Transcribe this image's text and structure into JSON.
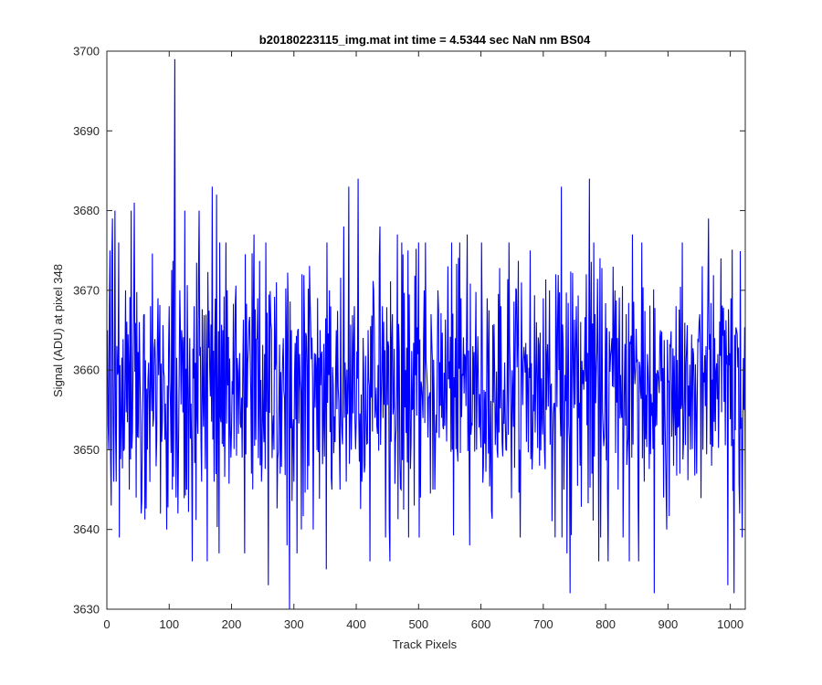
{
  "chart_data": {
    "type": "line",
    "title": "b20180223115_img.mat int time = 4.5344 sec  NaN nm BS04",
    "xlabel": "Track Pixels",
    "ylabel": "Signal (ADU) at pixel 348",
    "xlim": [
      0,
      1024
    ],
    "ylim": [
      3630,
      3700
    ],
    "xticks": [
      0,
      100,
      200,
      300,
      400,
      500,
      600,
      700,
      800,
      900,
      1000
    ],
    "yticks": [
      3630,
      3640,
      3650,
      3660,
      3670,
      3680,
      3690,
      3700
    ],
    "grid": false,
    "legend": "none",
    "series_color": "#0000ff",
    "series": [
      {
        "x_start": 1,
        "x_step": 1,
        "noise_model": {
          "mean": 3658,
          "sd": 8.5
        },
        "points": [
          [
            1,
            3665
          ],
          [
            3,
            3650
          ],
          [
            5,
            3675
          ],
          [
            7,
            3643
          ],
          [
            9,
            3679
          ],
          [
            11,
            3646
          ],
          [
            13,
            3680
          ],
          [
            15,
            3646
          ],
          [
            19,
            3676
          ],
          [
            23,
            3654
          ],
          [
            30,
            3670
          ],
          [
            36,
            3645
          ],
          [
            39,
            3680
          ],
          [
            42,
            3660
          ],
          [
            44,
            3681
          ],
          [
            47,
            3644
          ],
          [
            52,
            3666
          ],
          [
            55,
            3642
          ],
          [
            60,
            3667
          ],
          [
            65,
            3650
          ],
          [
            70,
            3668
          ],
          [
            75,
            3654
          ],
          [
            82,
            3669
          ],
          [
            88,
            3651
          ],
          [
            96,
            3640
          ],
          [
            100,
            3668
          ],
          [
            105,
            3645
          ],
          [
            109,
            3699
          ],
          [
            111,
            3644
          ],
          [
            114,
            3642
          ],
          [
            120,
            3665
          ],
          [
            125,
            3680
          ],
          [
            128,
            3645
          ],
          [
            133,
            3664
          ],
          [
            137,
            3636
          ],
          [
            140,
            3668
          ],
          [
            148,
            3680
          ],
          [
            152,
            3646
          ],
          [
            161,
            3636
          ],
          [
            165,
            3660
          ],
          [
            169,
            3683
          ],
          [
            172,
            3646
          ],
          [
            176,
            3682
          ],
          [
            180,
            3637
          ],
          [
            186,
            3665
          ],
          [
            193,
            3670
          ],
          [
            199,
            3649
          ],
          [
            205,
            3661
          ],
          [
            211,
            3652
          ],
          [
            218,
            3660
          ],
          [
            221,
            3637
          ],
          [
            228,
            3666
          ],
          [
            232,
            3647
          ],
          [
            236,
            3677
          ],
          [
            242,
            3669
          ],
          [
            248,
            3646
          ],
          [
            253,
            3662
          ],
          [
            259,
            3633
          ],
          [
            263,
            3666
          ],
          [
            268,
            3650
          ],
          [
            272,
            3671
          ],
          [
            278,
            3647
          ],
          [
            283,
            3664
          ],
          [
            289,
            3638
          ],
          [
            293,
            3630
          ],
          [
            296,
            3665
          ],
          [
            300,
            3646
          ],
          [
            305,
            3637
          ],
          [
            309,
            3662
          ],
          [
            312,
            3640
          ],
          [
            317,
            3666
          ],
          [
            322,
            3645
          ],
          [
            326,
            3669
          ],
          [
            331,
            3640
          ],
          [
            336,
            3660
          ],
          [
            342,
            3665
          ],
          [
            347,
            3653
          ],
          [
            352,
            3635
          ],
          [
            357,
            3670
          ],
          [
            361,
            3645
          ],
          [
            368,
            3665
          ],
          [
            374,
            3645
          ],
          [
            380,
            3678
          ],
          [
            384,
            3646
          ],
          [
            388,
            3683
          ],
          [
            392,
            3650
          ],
          [
            397,
            3668
          ],
          [
            403,
            3684
          ],
          [
            409,
            3646
          ],
          [
            414,
            3648
          ],
          [
            419,
            3665
          ],
          [
            422,
            3636
          ],
          [
            428,
            3670
          ],
          [
            434,
            3652
          ],
          [
            438,
            3678
          ],
          [
            442,
            3668
          ],
          [
            448,
            3655
          ],
          [
            454,
            3636
          ],
          [
            458,
            3667
          ],
          [
            463,
            3651
          ],
          [
            466,
            3677
          ],
          [
            472,
            3645
          ],
          [
            479,
            3660
          ],
          [
            483,
            3675
          ],
          [
            488,
            3651
          ],
          [
            493,
            3643
          ],
          [
            499,
            3662
          ],
          [
            503,
            3644
          ],
          [
            509,
            3670
          ],
          [
            514,
            3658
          ],
          [
            520,
            3667
          ],
          [
            526,
            3645
          ],
          [
            531,
            3670
          ],
          [
            537,
            3654
          ],
          [
            542,
            3653
          ],
          [
            547,
            3673
          ],
          [
            554,
            3650
          ],
          [
            559,
            3664
          ],
          [
            562,
            3650
          ],
          [
            568,
            3669
          ],
          [
            574,
            3662
          ],
          [
            578,
            3677
          ],
          [
            582,
            3638
          ],
          [
            587,
            3663
          ],
          [
            593,
            3650
          ],
          [
            598,
            3657
          ],
          [
            604,
            3648
          ],
          [
            610,
            3669
          ],
          [
            615,
            3650
          ],
          [
            622,
            3660
          ],
          [
            627,
            3649
          ],
          [
            632,
            3668
          ],
          [
            640,
            3650
          ],
          [
            645,
            3676
          ],
          [
            651,
            3657
          ],
          [
            657,
            3670
          ],
          [
            662,
            3650
          ],
          [
            668,
            3661
          ],
          [
            673,
            3651
          ],
          [
            679,
            3675
          ],
          [
            683,
            3650
          ],
          [
            689,
            3666
          ],
          [
            694,
            3648
          ],
          [
            700,
            3669
          ],
          [
            705,
            3655
          ],
          [
            710,
            3670
          ],
          [
            715,
            3650
          ],
          [
            720,
            3672
          ],
          [
            725,
            3660
          ],
          [
            729,
            3683
          ],
          [
            733,
            3645
          ],
          [
            738,
            3637
          ],
          [
            743,
            3632
          ],
          [
            748,
            3660
          ],
          [
            753,
            3668
          ],
          [
            759,
            3648
          ],
          [
            764,
            3660
          ],
          [
            769,
            3672
          ],
          [
            774,
            3684
          ],
          [
            778,
            3647
          ],
          [
            783,
            3667
          ],
          [
            789,
            3636
          ],
          [
            793,
            3655
          ],
          [
            799,
            3657
          ],
          [
            804,
            3636
          ],
          [
            810,
            3664
          ],
          [
            815,
            3670
          ],
          [
            820,
            3645
          ],
          [
            826,
            3654
          ],
          [
            833,
            3667
          ],
          [
            838,
            3636
          ],
          [
            843,
            3677
          ],
          [
            848,
            3660
          ],
          [
            853,
            3636
          ],
          [
            858,
            3676
          ],
          [
            862,
            3646
          ],
          [
            867,
            3662
          ],
          [
            873,
            3657
          ],
          [
            878,
            3632
          ],
          [
            883,
            3660
          ],
          [
            888,
            3665
          ],
          [
            893,
            3644
          ],
          [
            898,
            3640
          ],
          [
            904,
            3663
          ],
          [
            909,
            3648
          ],
          [
            913,
            3668
          ],
          [
            919,
            3647
          ],
          [
            925,
            3651
          ],
          [
            930,
            3663
          ],
          [
            936,
            3650
          ],
          [
            941,
            3662
          ],
          [
            946,
            3647
          ],
          [
            951,
            3667
          ],
          [
            956,
            3650
          ],
          [
            961,
            3663
          ],
          [
            965,
            3679
          ],
          [
            970,
            3648
          ],
          [
            975,
            3664
          ],
          [
            980,
            3662
          ],
          [
            985,
            3674
          ],
          [
            990,
            3656
          ],
          [
            996,
            3633
          ],
          [
            1001,
            3669
          ],
          [
            1006,
            3632
          ],
          [
            1010,
            3665
          ],
          [
            1015,
            3642
          ],
          [
            1019,
            3639
          ],
          [
            1022,
            3655
          ],
          [
            1024,
            3645
          ]
        ]
      }
    ]
  }
}
